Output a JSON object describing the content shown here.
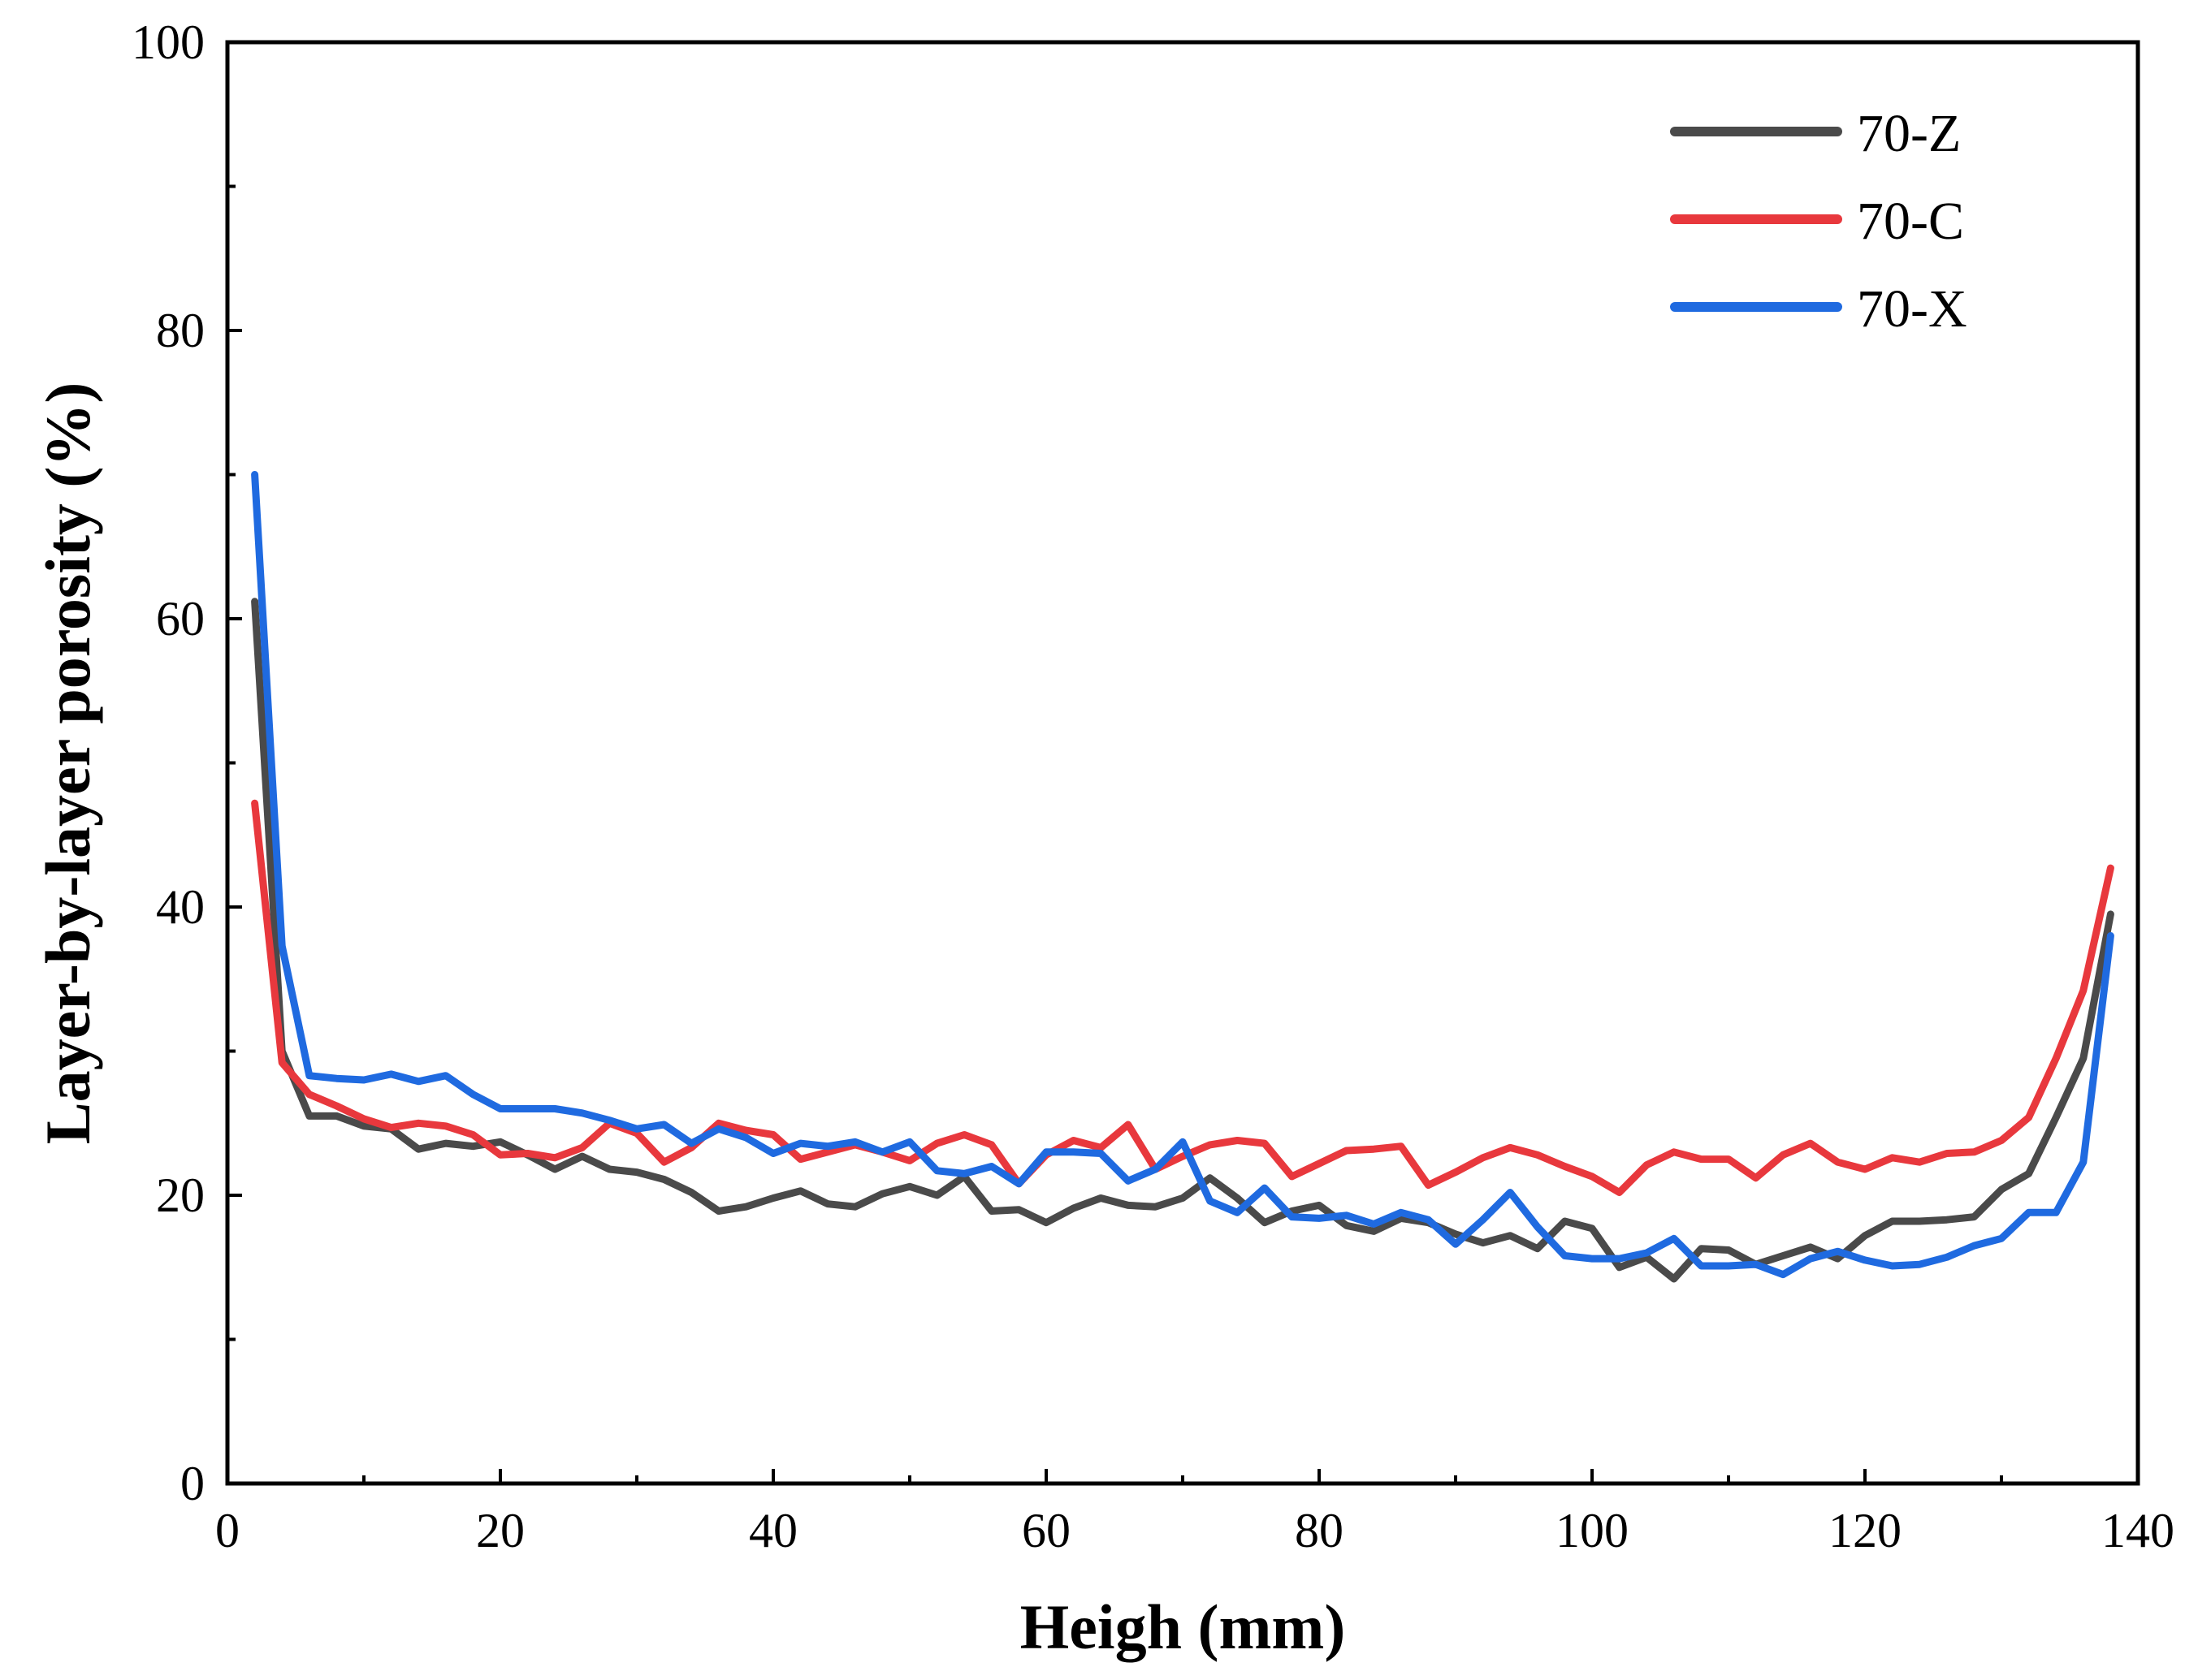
{
  "chart_data": {
    "type": "line",
    "title": "",
    "xlabel": "Heigh (mm)",
    "ylabel": "Layer-by-layer porosity (%)",
    "xlim": [
      0,
      140
    ],
    "ylim": [
      0,
      100
    ],
    "xticks": [
      0,
      20,
      40,
      60,
      80,
      100,
      120,
      140
    ],
    "yticks": [
      0,
      20,
      40,
      60,
      80,
      100
    ],
    "xtick_labels": [
      "0",
      "20",
      "40",
      "60",
      "80",
      "100",
      "120",
      "140"
    ],
    "ytick_labels": [
      "0",
      "20",
      "40",
      "60",
      "80",
      "100"
    ],
    "legend_position": "top-right",
    "grid": false,
    "series": [
      {
        "name": "70-Z",
        "color": "#4a4a4a",
        "x": [
          2,
          4,
          6,
          8,
          10,
          12,
          14,
          16,
          18,
          20,
          22,
          24,
          26,
          28,
          30,
          32,
          34,
          36,
          38,
          40,
          42,
          44,
          46,
          48,
          50,
          52,
          54,
          56,
          58,
          60,
          62,
          64,
          66,
          68,
          70,
          72,
          74,
          76,
          78,
          80,
          82,
          84,
          86,
          88,
          90,
          92,
          94,
          96,
          98,
          100,
          102,
          104,
          106,
          108,
          110,
          112,
          114,
          116,
          118,
          120,
          122,
          124,
          126,
          128,
          130,
          132,
          134,
          136,
          138
        ],
        "values": [
          61.2,
          30,
          25.5,
          25.5,
          24.8,
          24.6,
          23.2,
          23.6,
          23.4,
          23.7,
          22.8,
          21.8,
          22.7,
          21.8,
          21.6,
          21.1,
          20.2,
          18.9,
          19.2,
          19.8,
          20.3,
          19.4,
          19.2,
          20.1,
          20.6,
          20.0,
          21.3,
          18.9,
          19.0,
          18.1,
          19.1,
          19.8,
          19.3,
          19.2,
          19.8,
          21.2,
          19.8,
          18.1,
          18.9,
          19.3,
          17.9,
          17.5,
          18.4,
          18.1,
          17.3,
          16.7,
          17.2,
          16.3,
          18.2,
          17.7,
          15.0,
          15.7,
          14.2,
          16.3,
          16.2,
          15.2,
          15.8,
          16.4,
          15.6,
          17.2,
          18.2,
          18.2,
          18.3,
          18.5,
          20.4,
          21.5,
          25.4,
          29.5,
          39.5
        ]
      },
      {
        "name": "70-C",
        "color": "#e8383d",
        "x": [
          2,
          4,
          6,
          8,
          10,
          12,
          14,
          16,
          18,
          20,
          22,
          24,
          26,
          28,
          30,
          32,
          34,
          36,
          38,
          40,
          42,
          44,
          46,
          48,
          50,
          52,
          54,
          56,
          58,
          60,
          62,
          64,
          66,
          68,
          70,
          72,
          74,
          76,
          78,
          80,
          82,
          84,
          86,
          88,
          90,
          92,
          94,
          96,
          98,
          100,
          102,
          104,
          106,
          108,
          110,
          112,
          114,
          116,
          118,
          120,
          122,
          124,
          126,
          128,
          130,
          132,
          134,
          136,
          138
        ],
        "values": [
          47.2,
          29.2,
          27.0,
          26.2,
          25.3,
          24.7,
          25.0,
          24.8,
          24.2,
          22.8,
          22.9,
          22.6,
          23.3,
          25.0,
          24.3,
          22.3,
          23.3,
          25.0,
          24.5,
          24.2,
          22.5,
          23.0,
          23.5,
          23.0,
          22.4,
          23.6,
          24.2,
          23.5,
          20.8,
          22.8,
          23.8,
          23.3,
          24.9,
          21.8,
          22.7,
          23.5,
          23.8,
          23.6,
          21.3,
          22.2,
          23.1,
          23.2,
          23.4,
          20.7,
          21.6,
          22.6,
          23.3,
          22.8,
          22.0,
          21.3,
          20.2,
          22.1,
          23.0,
          22.5,
          22.5,
          21.2,
          22.8,
          23.6,
          22.3,
          21.8,
          22.6,
          22.3,
          22.9,
          23.0,
          23.8,
          25.4,
          29.5,
          34.2,
          42.7
        ]
      },
      {
        "name": "70-X",
        "color": "#1f6ae0",
        "x": [
          2,
          4,
          6,
          8,
          10,
          12,
          14,
          16,
          18,
          20,
          22,
          24,
          26,
          28,
          30,
          32,
          34,
          36,
          38,
          40,
          42,
          44,
          46,
          48,
          50,
          52,
          54,
          56,
          58,
          60,
          62,
          64,
          66,
          68,
          70,
          72,
          74,
          76,
          78,
          80,
          82,
          84,
          86,
          88,
          90,
          92,
          94,
          96,
          98,
          100,
          102,
          104,
          106,
          108,
          110,
          112,
          114,
          116,
          118,
          120,
          122,
          124,
          126,
          128,
          130,
          132,
          134,
          136,
          138
        ],
        "values": [
          70.0,
          37.3,
          28.3,
          28.1,
          28.0,
          28.4,
          27.9,
          28.3,
          27.0,
          26.0,
          26.0,
          26.0,
          25.7,
          25.2,
          24.6,
          24.9,
          23.6,
          24.6,
          24.0,
          22.9,
          23.6,
          23.4,
          23.7,
          23.0,
          23.7,
          21.7,
          21.5,
          22.0,
          20.8,
          23.0,
          23.0,
          22.9,
          21.0,
          21.8,
          23.7,
          19.6,
          18.8,
          20.5,
          18.5,
          18.4,
          18.6,
          18.0,
          18.8,
          18.3,
          16.6,
          18.3,
          20.2,
          17.8,
          15.8,
          15.6,
          15.6,
          16.0,
          17.0,
          15.1,
          15.1,
          15.2,
          14.5,
          15.6,
          16.1,
          15.5,
          15.1,
          15.2,
          15.7,
          16.5,
          17.0,
          18.8,
          18.8,
          22.3,
          38.0
        ]
      }
    ]
  }
}
